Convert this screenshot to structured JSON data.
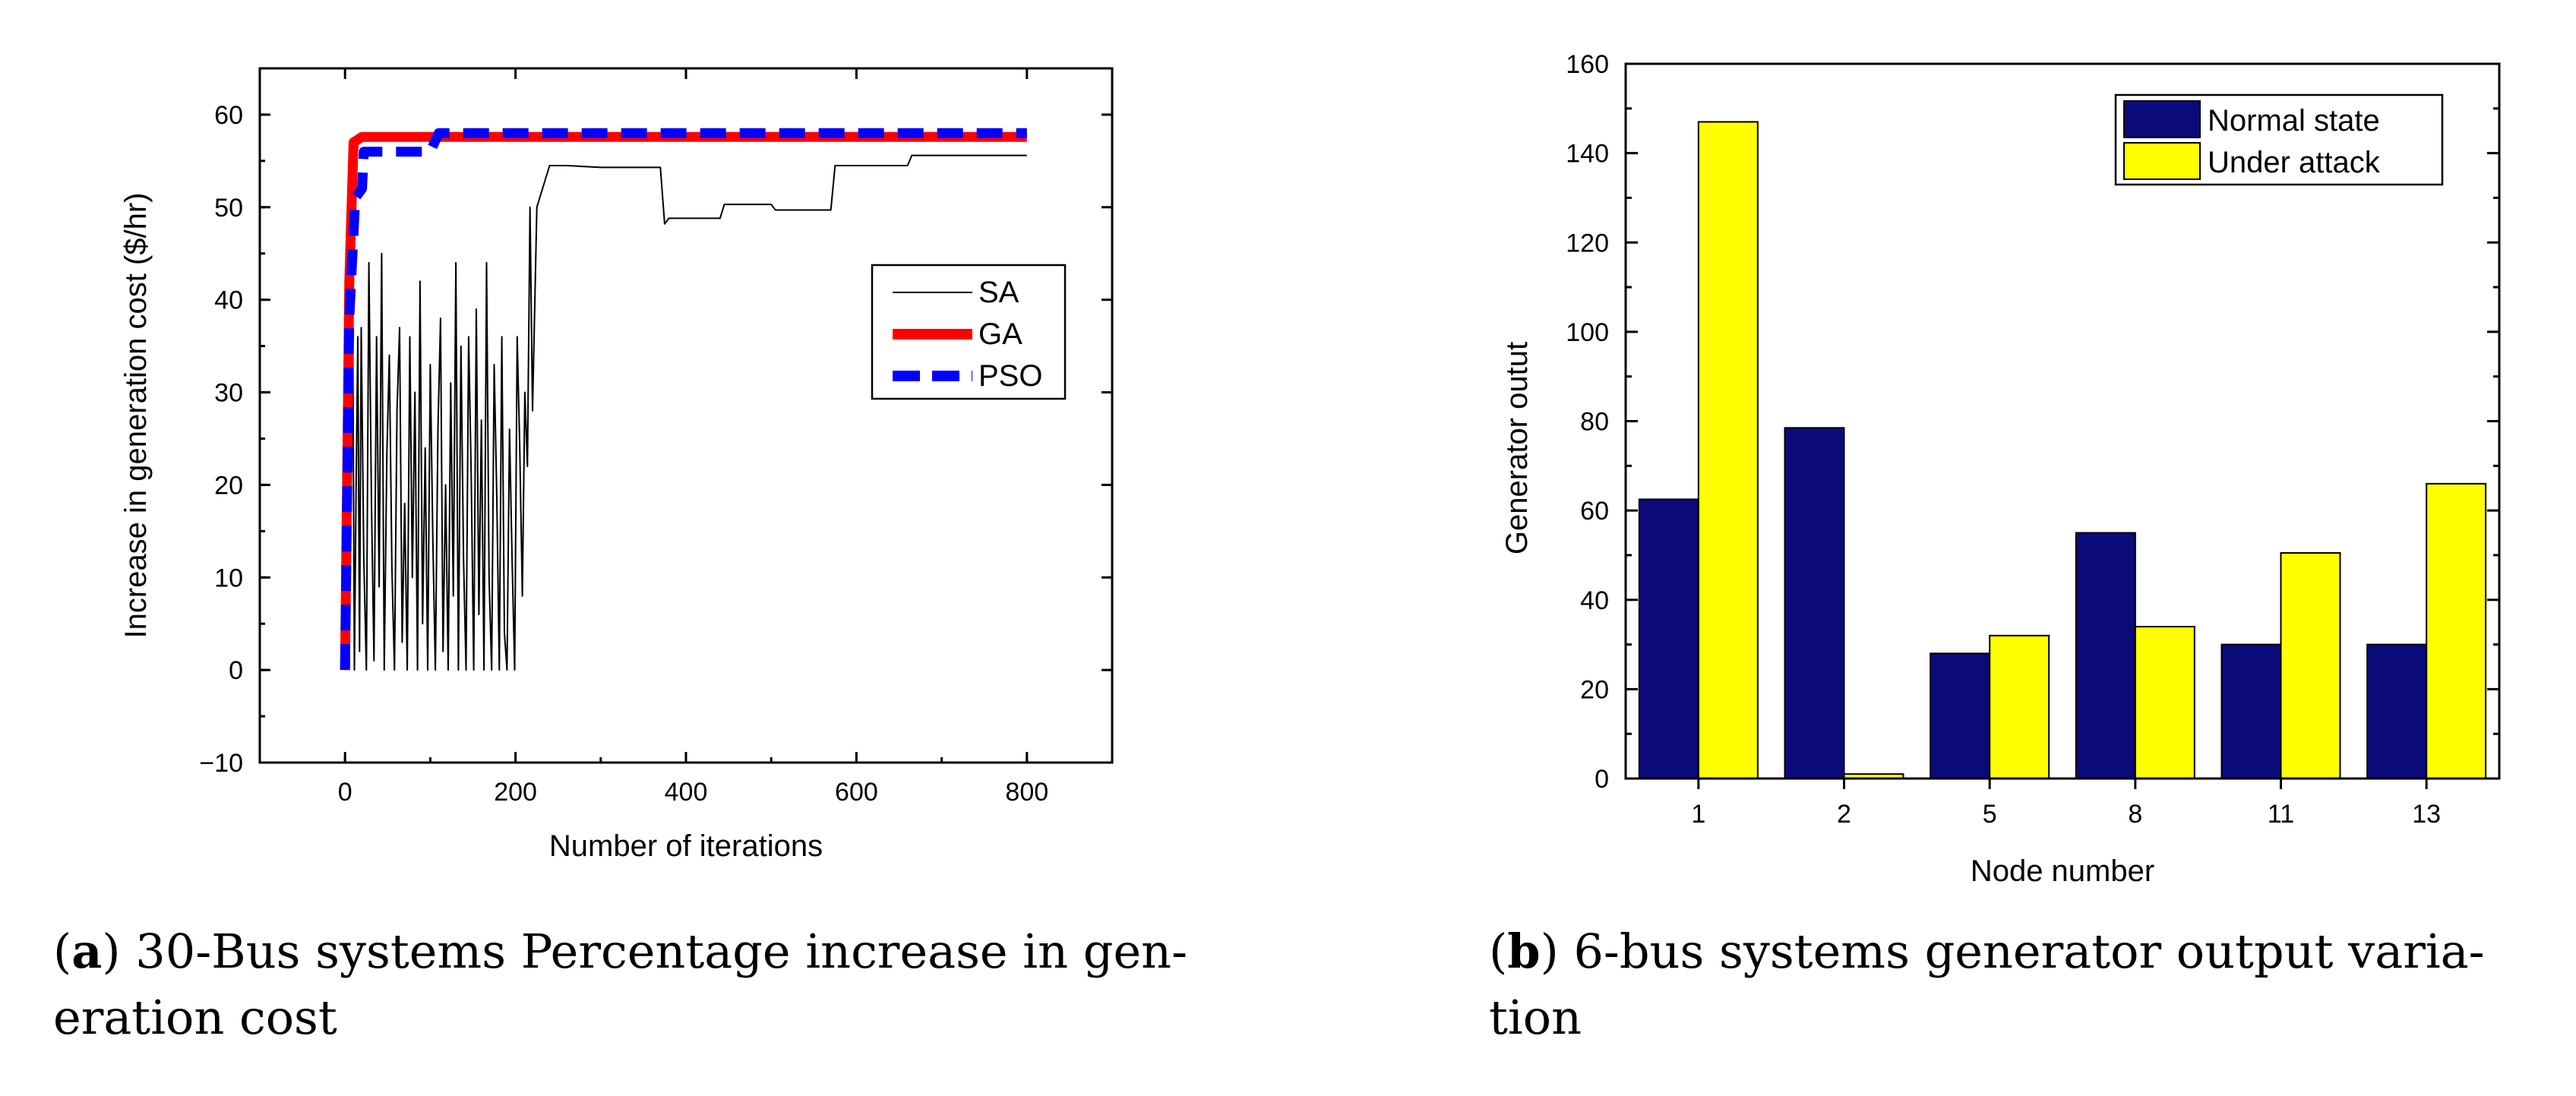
{
  "chart_data": [
    {
      "id": "a",
      "type": "line",
      "xlabel": "Number of iterations",
      "ylabel": "Increase in generation cost ($/hr)",
      "xlim": [
        -100,
        900
      ],
      "ylim": [
        -10,
        65
      ],
      "xticks": [
        0,
        200,
        400,
        600,
        800
      ],
      "yticks": [
        -10,
        0,
        10,
        20,
        30,
        40,
        50,
        60
      ],
      "xtick_labels": [
        "0",
        "200",
        "400",
        "600",
        "800"
      ],
      "ytick_labels": [
        "−10",
        "0",
        "10",
        "20",
        "30",
        "40",
        "50",
        "60"
      ],
      "legend_position": "upper-right-center",
      "series": [
        {
          "name": "SA",
          "color": "#000000",
          "style": "solid-thin",
          "x": [
            0,
            3,
            5,
            7,
            9,
            11,
            13,
            15,
            17,
            19,
            22,
            25,
            28,
            31,
            34,
            37,
            40,
            43,
            46,
            49,
            52,
            55,
            58,
            61,
            64,
            67,
            70,
            73,
            76,
            79,
            82,
            85,
            88,
            91,
            94,
            97,
            100,
            103,
            106,
            109,
            112,
            115,
            118,
            121,
            124,
            127,
            130,
            133,
            136,
            139,
            142,
            145,
            148,
            151,
            154,
            157,
            160,
            163,
            166,
            169,
            172,
            175,
            178,
            181,
            184,
            187,
            190,
            193,
            196,
            199,
            202,
            205,
            208,
            211,
            214,
            217,
            220,
            225,
            230,
            240,
            250,
            260,
            300,
            310,
            340,
            370,
            375,
            380,
            440,
            445,
            500,
            505,
            570,
            575,
            660,
            665,
            800
          ],
          "y": [
            0,
            35,
            5,
            25,
            38,
            0,
            20,
            36,
            2,
            37,
            12,
            0,
            44,
            18,
            1,
            36,
            9,
            45,
            0,
            23,
            34,
            11,
            0,
            28,
            37,
            3,
            18,
            0,
            36,
            10,
            30,
            0,
            42,
            5,
            24,
            0,
            33,
            14,
            0,
            26,
            38,
            2,
            20,
            0,
            31,
            8,
            44,
            0,
            35,
            12,
            0,
            36,
            21,
            0,
            39,
            6,
            27,
            0,
            44,
            10,
            0,
            33,
            19,
            0,
            36,
            4,
            0,
            26,
            12,
            0,
            36,
            24,
            8,
            30,
            22,
            50,
            28,
            50,
            51.5,
            54.5,
            54.5,
            54.5,
            54.3,
            54.3,
            54.3,
            54.3,
            48.2,
            48.8,
            48.8,
            50.3,
            50.3,
            49.7,
            49.7,
            54.5,
            54.5,
            55.6,
            55.6
          ]
        },
        {
          "name": "GA",
          "color": "#ff0000",
          "style": "solid-thick",
          "x": [
            0,
            5,
            10,
            20,
            800
          ],
          "y": [
            0,
            42,
            57,
            57.6,
            57.6
          ]
        },
        {
          "name": "PSO",
          "color": "#0000ff",
          "style": "dashed-thick",
          "x": [
            0,
            5,
            12,
            20,
            22,
            60,
            100,
            110,
            800
          ],
          "y": [
            0,
            38,
            51,
            52,
            56,
            56,
            56,
            58,
            58
          ]
        }
      ]
    },
    {
      "id": "b",
      "type": "bar",
      "xlabel": "Node number",
      "ylabel": "Generator outut",
      "ylim": [
        0,
        160
      ],
      "yticks": [
        0,
        20,
        40,
        60,
        80,
        100,
        120,
        140,
        160
      ],
      "categories": [
        "1",
        "2",
        "5",
        "8",
        "11",
        "13"
      ],
      "legend_position": "top-right",
      "series": [
        {
          "name": "Normal state",
          "color": "#0a0a7a",
          "values": [
            62.5,
            78.5,
            28,
            55,
            30,
            30
          ]
        },
        {
          "name": "Under attack",
          "color": "#ffff00",
          "values": [
            147,
            1,
            32,
            34,
            50.5,
            66
          ]
        }
      ]
    }
  ],
  "captions": {
    "a_letter": "a",
    "a_text": " 30-Bus systems Percentage increase in gen-eration cost",
    "b_letter": "b",
    "b_text": " 6-bus systems generator output varia-tion"
  }
}
